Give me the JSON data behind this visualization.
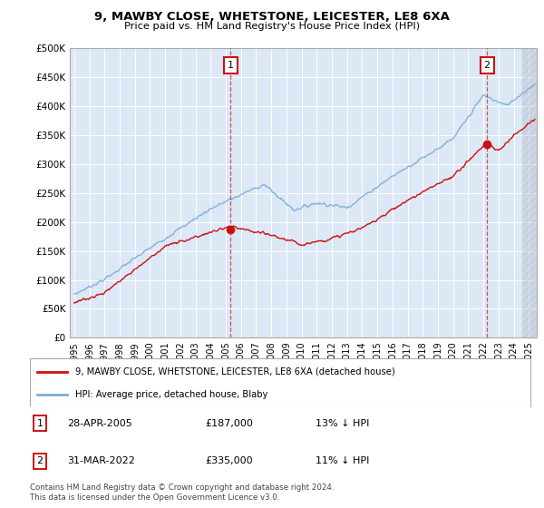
{
  "title": "9, MAWBY CLOSE, WHETSTONE, LEICESTER, LE8 6XA",
  "subtitle": "Price paid vs. HM Land Registry's House Price Index (HPI)",
  "ylim": [
    0,
    500000
  ],
  "yticks": [
    0,
    50000,
    100000,
    150000,
    200000,
    250000,
    300000,
    350000,
    400000,
    450000,
    500000
  ],
  "ytick_labels": [
    "£0",
    "£50K",
    "£100K",
    "£150K",
    "£200K",
    "£250K",
    "£300K",
    "£350K",
    "£400K",
    "£450K",
    "£500K"
  ],
  "xlim_start": 1994.7,
  "xlim_end": 2025.5,
  "xtick_years": [
    1995,
    1996,
    1997,
    1998,
    1999,
    2000,
    2001,
    2002,
    2003,
    2004,
    2005,
    2006,
    2007,
    2008,
    2009,
    2010,
    2011,
    2012,
    2013,
    2014,
    2015,
    2016,
    2017,
    2018,
    2019,
    2020,
    2021,
    2022,
    2023,
    2024,
    2025
  ],
  "bg_color": "#dce8f5",
  "fig_color": "#ffffff",
  "grid_color": "#c8d8e8",
  "hpi_color": "#7aadd4",
  "price_color": "#cc1111",
  "marker1_year": 2005.32,
  "marker1_price": 187000,
  "marker2_year": 2022.24,
  "marker2_price": 335000,
  "legend_line1": "9, MAWBY CLOSE, WHETSTONE, LEICESTER, LE8 6XA (detached house)",
  "legend_line2": "HPI: Average price, detached house, Blaby",
  "ann1_date": "28-APR-2005",
  "ann1_price": "£187,000",
  "ann1_hpi": "13% ↓ HPI",
  "ann2_date": "31-MAR-2022",
  "ann2_price": "£335,000",
  "ann2_hpi": "11% ↓ HPI",
  "footer": "Contains HM Land Registry data © Crown copyright and database right 2024.\nThis data is licensed under the Open Government Licence v3.0.",
  "hatch_start": 2024.58
}
